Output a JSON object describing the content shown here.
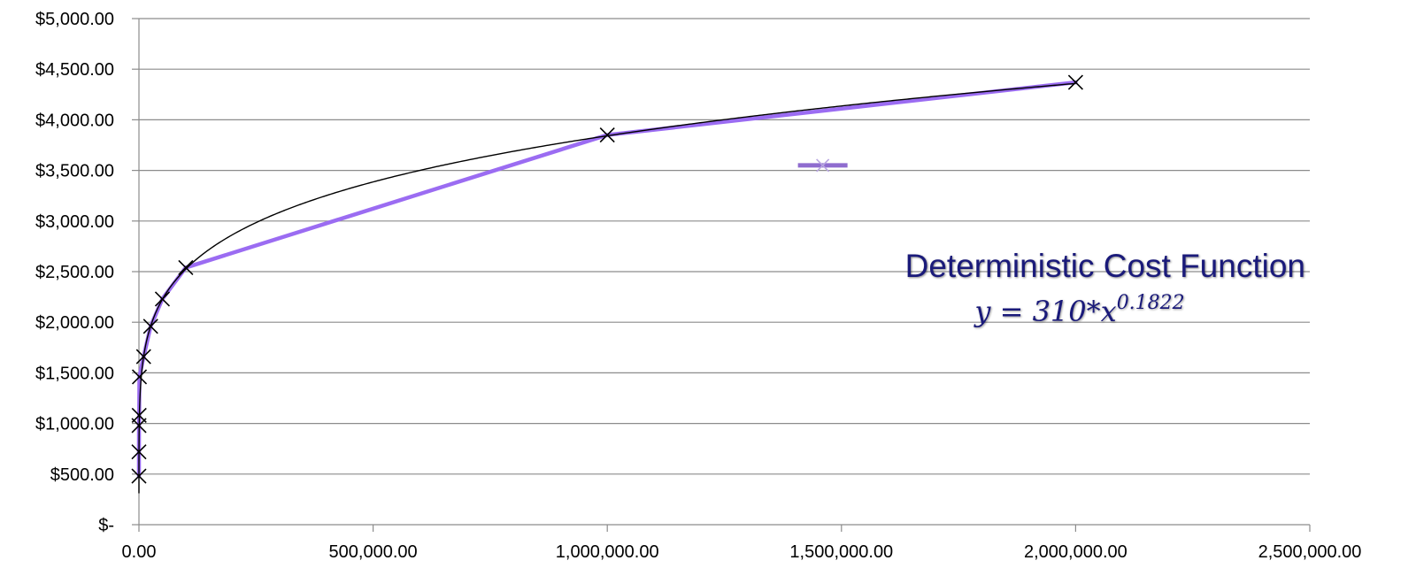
{
  "chart_data": {
    "type": "scatter",
    "x_ticks": [
      "0.00",
      "500,000.00",
      "1,000,000.00",
      "1,500,000.00",
      "2,000,000.00",
      "2,500,000.00"
    ],
    "y_ticks": [
      "$-",
      "$500.00",
      "$1,000.00",
      "$1,500.00",
      "$2,000.00",
      "$2,500.00",
      "$3,000.00",
      "$3,500.00",
      "$4,000.00",
      "$4,500.00",
      "$5,000.00"
    ],
    "xlim": [
      0,
      2500000
    ],
    "ylim": [
      0,
      5000
    ],
    "grid": true,
    "series": [
      {
        "marker": "x",
        "color": "#9b6cf2",
        "points": [
          {
            "x": 1,
            "y": 480
          },
          {
            "x": 10,
            "y": 720
          },
          {
            "x": 100,
            "y": 980
          },
          {
            "x": 500,
            "y": 1080
          },
          {
            "x": 1000,
            "y": 1460
          },
          {
            "x": 10000,
            "y": 1660
          },
          {
            "x": 25000,
            "y": 1960
          },
          {
            "x": 50000,
            "y": 2230
          },
          {
            "x": 100000,
            "y": 2540
          },
          {
            "x": 1000000,
            "y": 3850
          },
          {
            "x": 2000000,
            "y": 4370
          }
        ]
      }
    ],
    "trendline": {
      "type": "power",
      "coefficient": 310,
      "exponent": 0.1822,
      "color": "#000000"
    },
    "legend_marker": {
      "x": 1460000,
      "y": 3550,
      "color": "#8f6ccf"
    },
    "annotation": {
      "title": "Deterministic Cost Function",
      "equation_base": "y = 310*x",
      "equation_exponent": "0.1822"
    }
  }
}
